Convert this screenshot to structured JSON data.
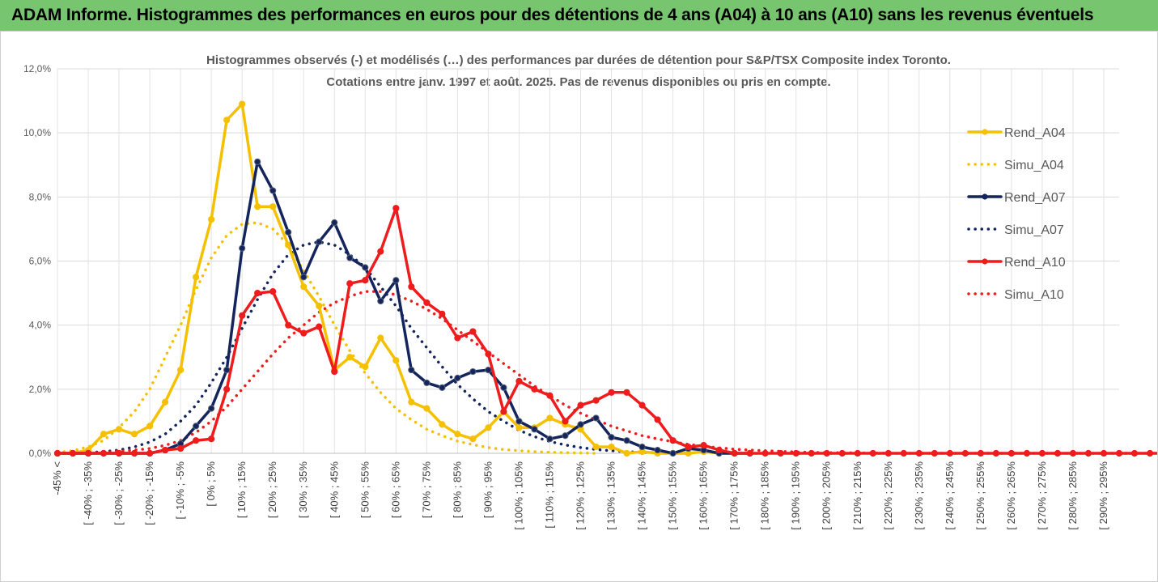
{
  "header": {
    "title": "ADAM Informe. Histogrammes des performances en euros pour des détentions de 4 ans (A04) à 10 ans (A10) sans les revenus éventuels"
  },
  "chart_data": {
    "type": "line",
    "title_line1": "Histogrammes observés (-) et modélisés (…) des performances par durées de détention pour S&P/TSX Composite index Toronto.",
    "title_line2": "Cotations entre janv. 1997 et août. 2025. Pas de revenus disponibles ou pris en compte.",
    "xlabel": "",
    "ylabel": "",
    "ylim": [
      0,
      12
    ],
    "y_ticks": [
      "0,0%",
      "2,0%",
      "4,0%",
      "6,0%",
      "8,0%",
      "10,0%",
      "12,0%"
    ],
    "y_tick_values": [
      0,
      2,
      4,
      6,
      8,
      10,
      12
    ],
    "x_tick_labels": [
      "-45% <",
      "[ -40% ; -35%",
      "[ -30% ; -25%",
      "[ -20% ; -15%",
      "[ -10% ; -5%",
      "[ 0% ; 5%",
      "[ 10% ; 15%",
      "[ 20% ; 25%",
      "[ 30% ; 35%",
      "[ 40% ; 45%",
      "[ 50% ; 55%",
      "[ 60% ; 65%",
      "[ 70% ; 75%",
      "[ 80% ; 85%",
      "[ 90% ; 95%",
      "[ 100% ; 105%",
      "[ 110% ; 115%",
      "[ 120% ; 125%",
      "[ 130% ; 135%",
      "[ 140% ; 145%",
      "[ 150% ; 155%",
      "[ 160% ; 165%",
      "[ 170% ; 175%",
      "[ 180% ; 185%",
      "[ 190% ; 195%",
      "[ 200% ; 205%",
      "[ 210% ; 215%",
      "[ 220% ; 225%",
      "[ 230% ; 235%",
      "[ 240% ; 245%",
      "[ 250% ; 255%",
      "[ 260% ; 265%",
      "[ 270% ; 275%",
      "[ 280% ; 285%",
      "[ 290% ; 295%"
    ],
    "grid": true,
    "legend_position": "right",
    "series": [
      {
        "name": "Rend_A04",
        "style": "solid",
        "markers": true,
        "color": "#f5c000",
        "values": [
          0,
          0,
          0.1,
          0.6,
          0.75,
          0.6,
          0.85,
          1.6,
          2.6,
          5.5,
          7.3,
          10.4,
          10.9,
          7.7,
          7.7,
          6.5,
          5.2,
          4.6,
          2.6,
          3.0,
          2.7,
          3.6,
          2.9,
          1.6,
          1.4,
          0.9,
          0.6,
          0.45,
          0.8,
          1.3,
          0.8,
          0.8,
          1.1,
          0.9,
          0.75,
          0.2,
          0.2,
          0,
          0.05,
          0,
          0,
          0,
          0.05,
          0
        ]
      },
      {
        "name": "Simu_A04",
        "style": "dotted",
        "markers": false,
        "color": "#f5c000",
        "values": [
          0.03,
          0.08,
          0.2,
          0.4,
          0.8,
          1.3,
          2.0,
          3.0,
          4.0,
          5.1,
          6.1,
          6.8,
          7.15,
          7.2,
          7.0,
          6.5,
          5.7,
          4.9,
          4.0,
          3.2,
          2.5,
          1.9,
          1.4,
          1.05,
          0.75,
          0.55,
          0.38,
          0.27,
          0.18,
          0.12,
          0.08,
          0.05,
          0.03,
          0.02,
          0.01,
          0
        ]
      },
      {
        "name": "Rend_A07",
        "style": "solid",
        "markers": true,
        "color": "#13255c",
        "values": [
          0,
          0,
          0,
          0,
          0,
          0,
          0,
          0.1,
          0.3,
          0.85,
          1.4,
          2.6,
          6.4,
          9.1,
          8.2,
          6.9,
          5.5,
          6.6,
          7.2,
          6.1,
          5.8,
          4.75,
          5.4,
          2.6,
          2.2,
          2.05,
          2.35,
          2.55,
          2.6,
          2.05,
          1.0,
          0.75,
          0.45,
          0.55,
          0.9,
          1.1,
          0.5,
          0.4,
          0.2,
          0.1,
          0,
          0.15,
          0.1,
          0,
          0,
          0
        ]
      },
      {
        "name": "Simu_A07",
        "style": "dotted",
        "markers": false,
        "color": "#13255c",
        "values": [
          0,
          0,
          0.02,
          0.05,
          0.1,
          0.2,
          0.35,
          0.6,
          1.0,
          1.5,
          2.2,
          3.0,
          3.9,
          4.8,
          5.6,
          6.2,
          6.5,
          6.6,
          6.5,
          6.2,
          5.8,
          5.2,
          4.6,
          3.9,
          3.3,
          2.7,
          2.15,
          1.7,
          1.3,
          1.0,
          0.72,
          0.52,
          0.37,
          0.26,
          0.18,
          0.12,
          0.08,
          0.05,
          0.03,
          0.02,
          0.01,
          0
        ]
      },
      {
        "name": "Rend_A10",
        "style": "solid",
        "markers": true,
        "color": "#ee1c1c",
        "values": [
          0,
          0,
          0,
          0,
          0,
          0,
          0,
          0.1,
          0.15,
          0.4,
          0.45,
          2.0,
          4.3,
          5.0,
          5.05,
          4.0,
          3.75,
          3.95,
          2.55,
          5.3,
          5.4,
          6.3,
          7.65,
          5.2,
          4.7,
          4.35,
          3.6,
          3.8,
          3.1,
          1.3,
          2.25,
          2.0,
          1.8,
          1.0,
          1.5,
          1.65,
          1.9,
          1.9,
          1.5,
          1.05,
          0.4,
          0.2,
          0.25,
          0.1,
          0,
          0,
          0,
          0,
          0,
          0,
          0,
          0,
          0,
          0,
          0,
          0,
          0,
          0,
          0,
          0,
          0,
          0,
          0,
          0,
          0,
          0,
          0,
          0,
          0,
          0,
          0,
          0,
          0,
          0,
          0,
          0,
          0,
          0,
          0
        ]
      },
      {
        "name": "Simu_A10",
        "style": "dotted",
        "markers": false,
        "color": "#ee1c1c",
        "values": [
          0,
          0,
          0.01,
          0.03,
          0.06,
          0.1,
          0.15,
          0.25,
          0.4,
          0.65,
          1.0,
          1.45,
          2.0,
          2.55,
          3.1,
          3.6,
          4.0,
          4.4,
          4.7,
          4.9,
          5.05,
          5.05,
          4.95,
          4.75,
          4.5,
          4.2,
          3.85,
          3.5,
          3.15,
          2.8,
          2.45,
          2.1,
          1.8,
          1.5,
          1.25,
          1.05,
          0.85,
          0.7,
          0.55,
          0.45,
          0.36,
          0.28,
          0.22,
          0.17,
          0.13,
          0.1,
          0.08,
          0.06,
          0.04,
          0.03,
          0.02,
          0.02,
          0.01,
          0.01,
          0,
          0,
          0,
          0,
          0,
          0,
          0,
          0,
          0,
          0,
          0,
          0,
          0,
          0,
          0,
          0,
          0,
          0,
          0,
          0,
          0,
          0,
          0,
          0,
          0
        ]
      }
    ]
  }
}
